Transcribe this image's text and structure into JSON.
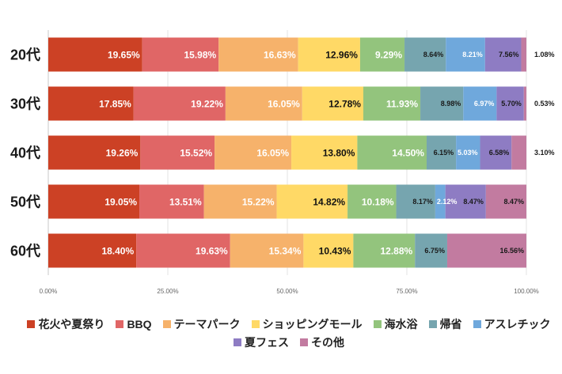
{
  "chart_data": {
    "type": "bar",
    "horizontal": true,
    "stacked_percent": true,
    "grid": true,
    "legend_position": "bottom",
    "categories": [
      "20代",
      "30代",
      "40代",
      "50代",
      "60代"
    ],
    "xlim": [
      0,
      100
    ],
    "xtick_values": [
      0,
      25,
      50,
      75,
      100
    ],
    "xticks": [
      "0.00%",
      "25.00%",
      "50.00%",
      "75.00%",
      "100.00%"
    ],
    "series": [
      {
        "name": "花火や夏祭り",
        "color": "#cc4125",
        "label_color": "#ffffff",
        "values": [
          19.65,
          17.85,
          19.26,
          19.05,
          18.4
        ],
        "labels": [
          "19.65%",
          "17.85%",
          "19.26%",
          "19.05%",
          "18.40%"
        ]
      },
      {
        "name": "BBQ",
        "color": "#e06666",
        "label_color": "#ffffff",
        "values": [
          15.98,
          19.22,
          15.52,
          13.51,
          19.63
        ],
        "labels": [
          "15.98%",
          "19.22%",
          "15.52%",
          "13.51%",
          "19.63%"
        ]
      },
      {
        "name": "テーマパーク",
        "color": "#f6b26b",
        "label_color": "#ffffff",
        "values": [
          16.63,
          16.05,
          16.05,
          15.22,
          15.34
        ],
        "labels": [
          "16.63%",
          "16.05%",
          "16.05%",
          "15.22%",
          "15.34%"
        ]
      },
      {
        "name": "ショッピングモール",
        "color": "#ffd966",
        "label_color": "#111111",
        "values": [
          12.96,
          12.78,
          13.8,
          14.82,
          10.43
        ],
        "labels": [
          "12.96%",
          "12.78%",
          "13.80%",
          "14.82%",
          "10.43%"
        ]
      },
      {
        "name": "海水浴",
        "color": "#93c47d",
        "label_color": "#ffffff",
        "values": [
          9.29,
          11.93,
          14.5,
          10.18,
          12.88
        ],
        "labels": [
          "9.29%",
          "11.93%",
          "14.50%",
          "10.18%",
          "12.88%"
        ]
      },
      {
        "name": "帰省",
        "color": "#76a5af",
        "label_color": "#1a1a1a",
        "values": [
          8.64,
          8.98,
          6.15,
          8.17,
          6.75
        ],
        "labels": [
          "8.64%",
          "8.98%",
          "6.15%",
          "8.17%",
          "6.75%"
        ]
      },
      {
        "name": "アスレチック",
        "color": "#6fa8dc",
        "label_color": "#ffffff",
        "values": [
          8.21,
          6.97,
          5.03,
          2.12,
          null
        ],
        "labels": [
          "8.21%",
          "6.97%",
          "5.03%",
          "2.12%",
          null
        ]
      },
      {
        "name": "夏フェス",
        "color": "#8e7cc3",
        "label_color": "#1a1a1a",
        "values": [
          7.56,
          5.7,
          6.58,
          8.47,
          null
        ],
        "labels": [
          "7.56%",
          "5.70%",
          "6.58%",
          "8.47%",
          null
        ]
      },
      {
        "name": "その他",
        "color": "#c27ba0",
        "label_color": "#1a1a1a",
        "values": [
          1.08,
          0.53,
          3.1,
          8.47,
          16.56
        ],
        "labels": [
          "1.08%",
          "0.53%",
          "3.10%",
          "8.47%",
          "16.56%"
        ]
      }
    ]
  }
}
